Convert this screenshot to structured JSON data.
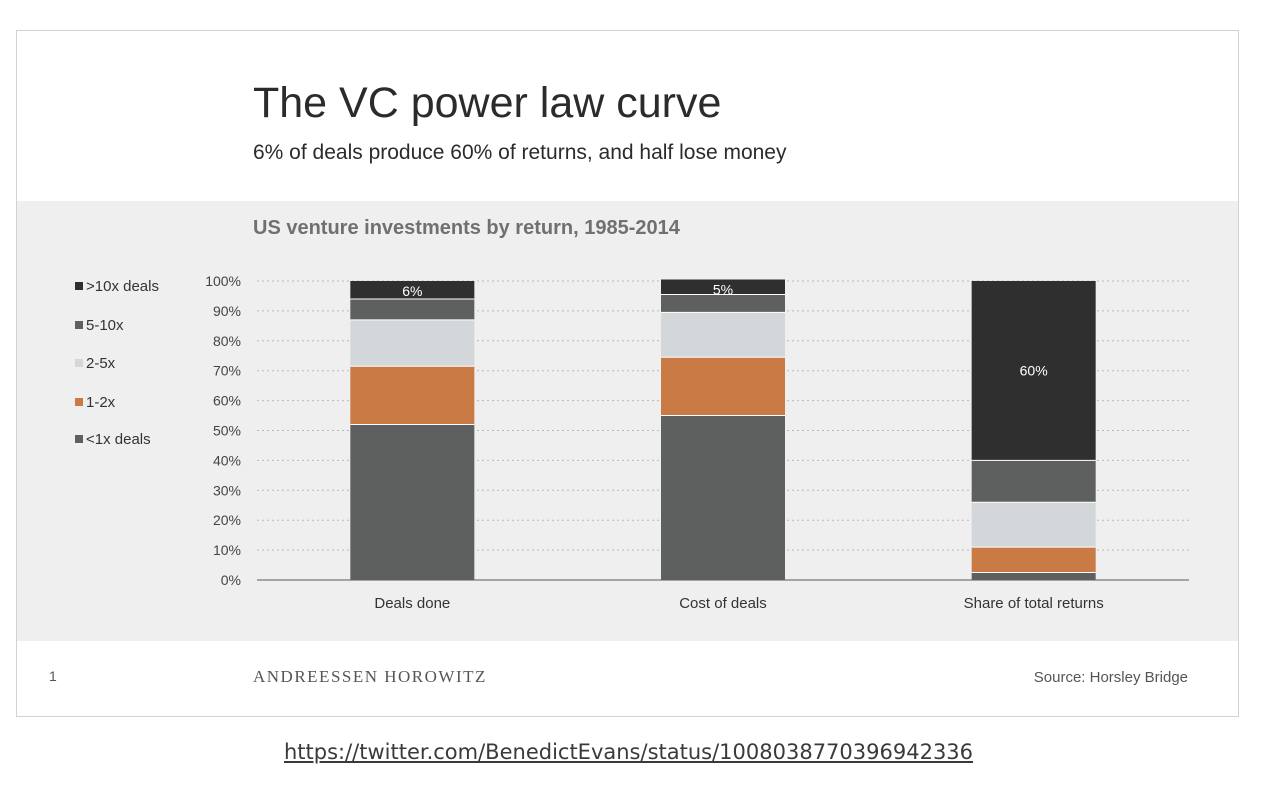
{
  "slide": {
    "title": "The VC power law curve",
    "subtitle": "6% of deals produce 60% of returns, and half lose money",
    "page_number": "1",
    "brand": "ANDREESSEN HOROWITZ",
    "source": "Source: Horsley Bridge"
  },
  "link": {
    "text": "https://twitter.com/BenedictEvans/status/1008038770396942336"
  },
  "colors": {
    "gt10x": "#2f2f2f",
    "x5_10": "#5e6060",
    "x2_5": "#d3d7da",
    "x1_2": "#c97a45",
    "lt1x": "#5e6060",
    "band": "#efefef",
    "grid": "#b9b9b9"
  },
  "chart_data": {
    "type": "bar",
    "stacked": true,
    "title": "US venture investments by return, 1985-2014",
    "categories": [
      "Deals done",
      "Cost of deals",
      "Share of total returns"
    ],
    "ylim": [
      0,
      100
    ],
    "yticks": [
      "0%",
      "10%",
      "20%",
      "30%",
      "40%",
      "50%",
      "60%",
      "70%",
      "80%",
      "90%",
      "100%"
    ],
    "grid": true,
    "legend_position": "left",
    "series": [
      {
        "name": "<1x deals",
        "color": "#5e6060",
        "values": [
          52,
          55,
          2.5
        ]
      },
      {
        "name": "1-2x",
        "color": "#c97a45",
        "values": [
          19.5,
          19.5,
          8.5
        ]
      },
      {
        "name": "2-5x",
        "color": "#d3d7da",
        "values": [
          15.5,
          15,
          15
        ]
      },
      {
        "name": "5-10x",
        "color": "#5e6060",
        "values": [
          7,
          6,
          14
        ]
      },
      {
        "name": ">10x deals",
        "color": "#2f2f2f",
        "values": [
          6,
          5,
          60
        ]
      }
    ],
    "data_labels": [
      "6%",
      "5%",
      "60%"
    ]
  }
}
